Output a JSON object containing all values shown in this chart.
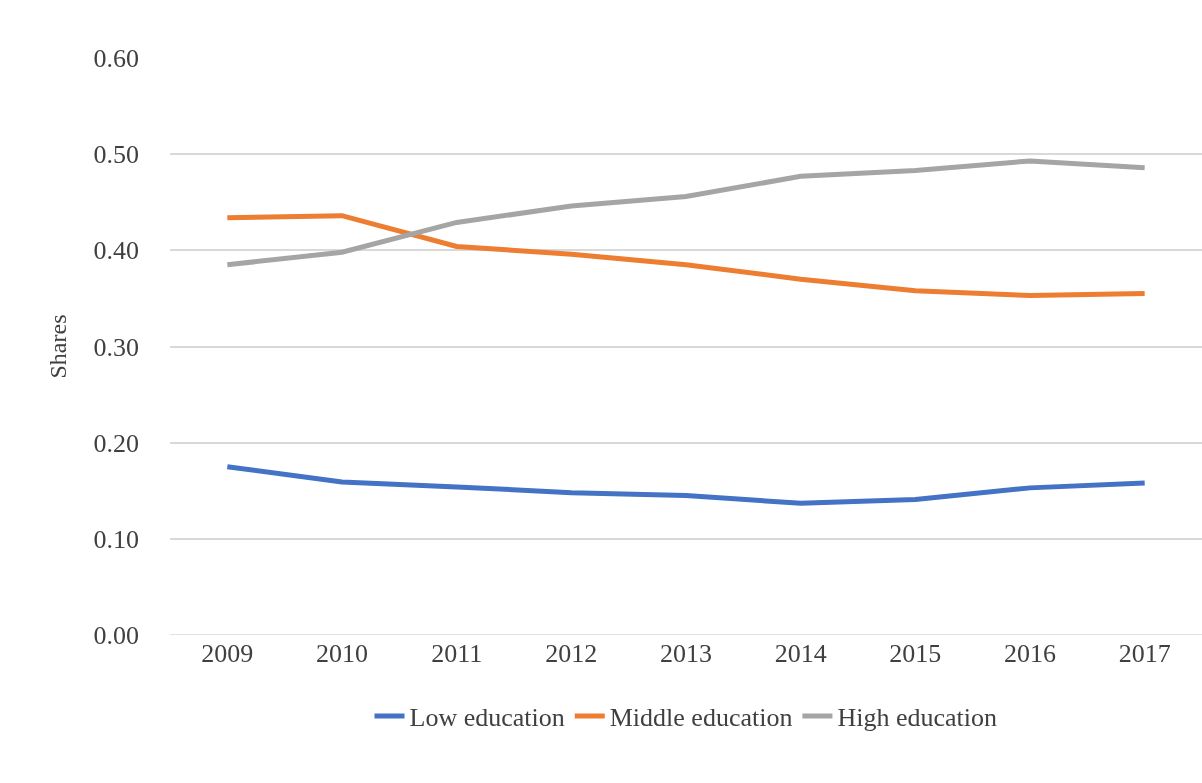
{
  "chart_data": {
    "type": "line",
    "ylabel": "Shares",
    "categories": [
      "2009",
      "2010",
      "2011",
      "2012",
      "2013",
      "2014",
      "2015",
      "2016",
      "2017"
    ],
    "series": [
      {
        "name": "Low education",
        "color": "#4472c4",
        "values": [
          0.175,
          0.159,
          0.154,
          0.148,
          0.145,
          0.137,
          0.141,
          0.153,
          0.158
        ]
      },
      {
        "name": "Middle education",
        "color": "#ed7d31",
        "values": [
          0.434,
          0.436,
          0.404,
          0.396,
          0.385,
          0.37,
          0.358,
          0.353,
          0.355
        ]
      },
      {
        "name": "High education",
        "color": "#a5a5a5",
        "values": [
          0.385,
          0.398,
          0.429,
          0.446,
          0.456,
          0.477,
          0.483,
          0.493,
          0.486
        ]
      }
    ],
    "ylim": [
      0,
      0.6
    ],
    "yticks": [
      {
        "value": 0,
        "label": "0.00"
      },
      {
        "value": 0.1,
        "label": "0.10"
      },
      {
        "value": 0.2,
        "label": "0.20"
      },
      {
        "value": 0.3,
        "label": "0.30"
      },
      {
        "value": 0.4,
        "label": "0.40"
      },
      {
        "value": 0.5,
        "label": "0.50"
      },
      {
        "value": 0.6,
        "label": "0.60"
      }
    ],
    "grid": "y",
    "legend": "bottom",
    "marker": "none",
    "line_style": "solid"
  }
}
